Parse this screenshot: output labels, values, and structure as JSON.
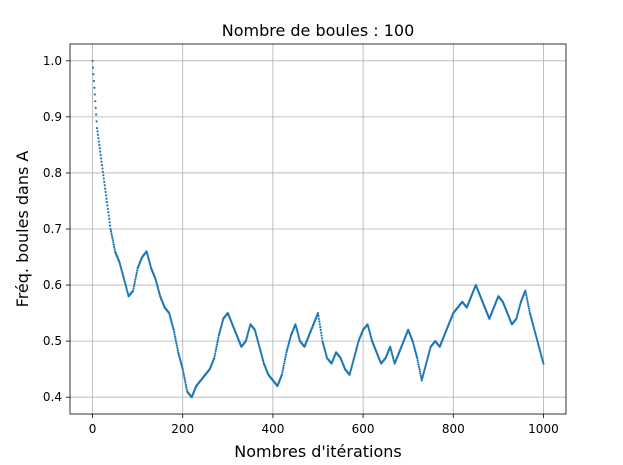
{
  "chart_data": {
    "type": "scatter",
    "title": "Nombre de boules : 100",
    "xlabel": "Nombres d'itérations",
    "ylabel": "Fréq. boules dans A",
    "xlim": [
      -50,
      1050
    ],
    "ylim": [
      0.37,
      1.03
    ],
    "xticks": [
      0,
      200,
      400,
      600,
      800,
      1000
    ],
    "yticks": [
      0.4,
      0.5,
      0.6,
      0.7,
      0.8,
      0.9,
      1.0
    ],
    "ytick_labels": [
      "0.4",
      "0.5",
      "0.6",
      "0.7",
      "0.8",
      "0.9",
      "1.0"
    ],
    "grid": true,
    "marker_color": "#1f77b4",
    "series": [
      {
        "x": [
          0,
          10,
          20,
          30,
          40,
          50,
          60,
          70,
          80,
          90,
          100,
          110,
          120,
          130,
          140,
          150,
          160,
          170,
          180,
          190,
          200,
          210,
          220,
          230,
          240,
          250,
          260,
          270,
          280,
          290,
          300,
          310,
          320,
          330,
          340,
          350,
          360,
          370,
          380,
          390,
          400,
          410,
          420,
          430,
          440,
          450,
          460,
          470,
          480,
          490,
          500,
          510,
          520,
          530,
          540,
          550,
          560,
          570,
          580,
          590,
          600,
          610,
          620,
          630,
          640,
          650,
          660,
          670,
          680,
          690,
          700,
          710,
          720,
          730,
          740,
          750,
          760,
          770,
          780,
          790,
          800,
          810,
          820,
          830,
          840,
          850,
          860,
          870,
          880,
          890,
          900,
          910,
          920,
          930,
          940,
          950,
          960,
          970,
          980,
          990,
          1000
        ],
        "y": [
          1.0,
          0.88,
          0.82,
          0.76,
          0.7,
          0.66,
          0.64,
          0.61,
          0.58,
          0.59,
          0.63,
          0.65,
          0.66,
          0.63,
          0.61,
          0.58,
          0.56,
          0.55,
          0.52,
          0.48,
          0.45,
          0.41,
          0.4,
          0.42,
          0.43,
          0.44,
          0.45,
          0.47,
          0.51,
          0.54,
          0.55,
          0.53,
          0.51,
          0.49,
          0.5,
          0.53,
          0.52,
          0.49,
          0.46,
          0.44,
          0.43,
          0.42,
          0.44,
          0.48,
          0.51,
          0.53,
          0.5,
          0.49,
          0.51,
          0.53,
          0.55,
          0.5,
          0.47,
          0.46,
          0.48,
          0.47,
          0.45,
          0.44,
          0.47,
          0.5,
          0.52,
          0.53,
          0.5,
          0.48,
          0.46,
          0.47,
          0.49,
          0.46,
          0.48,
          0.5,
          0.52,
          0.5,
          0.47,
          0.43,
          0.46,
          0.49,
          0.5,
          0.49,
          0.51,
          0.53,
          0.55,
          0.56,
          0.57,
          0.56,
          0.58,
          0.6,
          0.58,
          0.56,
          0.54,
          0.56,
          0.58,
          0.57,
          0.55,
          0.53,
          0.54,
          0.57,
          0.59,
          0.55,
          0.52,
          0.49,
          0.46
        ]
      }
    ]
  }
}
